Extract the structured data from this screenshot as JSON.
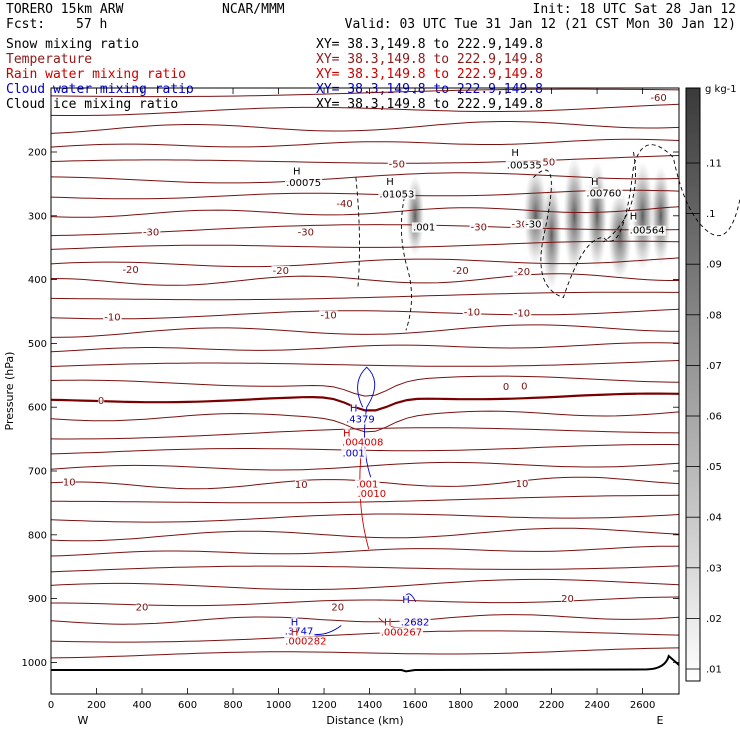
{
  "header": {
    "model": "TORERO  15km ARW",
    "org": "NCAR/MMM",
    "init": "Init: 18 UTC Sat 28 Jan 12",
    "fcst_label": "Fcst:",
    "fcst_value": "57 h",
    "valid": "Valid: 03 UTC Tue 31 Jan 12 (21 CST Mon 30 Jan 12)"
  },
  "fields": [
    {
      "name": "Snow mixing ratio",
      "xy": "XY=  38.3,149.8 to 222.9,149.8",
      "color": "#000000"
    },
    {
      "name": "Temperature",
      "xy": "XY=  38.3,149.8 to 222.9,149.8",
      "color": "#8b1a1a"
    },
    {
      "name": "Rain water mixing ratio",
      "xy": "XY=  38.3,149.8 to 222.9,149.8",
      "color": "#cc0000"
    },
    {
      "name": "Cloud water mixing ratio",
      "xy": "XY=  38.3,149.8 to 222.9,149.8",
      "color": "#0000cc"
    },
    {
      "name": "Cloud ice mixing ratio",
      "xy": "XY=  38.3,149.8 to 222.9,149.8",
      "color": "#000000"
    }
  ],
  "colors": {
    "temperature": "#7a1010",
    "temperature_zero": "#7a0000",
    "rain": "#cc0000",
    "cloud_water": "#0000cc",
    "snow": "#000000",
    "terrain": "#000000"
  },
  "chart_data": {
    "type": "contour cross-section",
    "xlabel": "Distance (km)",
    "ylabel": "Pressure (hPa)",
    "xlim": [
      0,
      2760
    ],
    "ylim": [
      1050,
      100
    ],
    "x_ticks": [
      0,
      200,
      400,
      600,
      800,
      1000,
      1200,
      1400,
      1600,
      1800,
      2000,
      2200,
      2400,
      2600
    ],
    "y_ticks": [
      200,
      300,
      400,
      500,
      600,
      700,
      800,
      900,
      1000
    ],
    "x_end_labels": {
      "left": "W",
      "right": "E"
    },
    "colorbar": {
      "unit": "g kg-1",
      "ticks": [
        ".01",
        ".02",
        ".03",
        ".04",
        ".05",
        ".06",
        ".07",
        ".08",
        ".09",
        ".1",
        ".11"
      ]
    },
    "temperature_labels": [
      {
        "text": "-60",
        "x": 2670,
        "p": 120
      },
      {
        "text": "-50",
        "x": 1520,
        "p": 224
      },
      {
        "text": "-50",
        "x": 2180,
        "p": 221
      },
      {
        "text": "-40",
        "x": 1290,
        "p": 286
      },
      {
        "text": "-30",
        "x": 440,
        "p": 331
      },
      {
        "text": "-30",
        "x": 1120,
        "p": 331
      },
      {
        "text": "-30",
        "x": 1880,
        "p": 323
      },
      {
        "text": "-30",
        "x": 2060,
        "p": 318
      },
      {
        "text": "-20",
        "x": 350,
        "p": 390
      },
      {
        "text": "-20",
        "x": 1010,
        "p": 391
      },
      {
        "text": "-20",
        "x": 1800,
        "p": 391
      },
      {
        "text": "-20",
        "x": 2070,
        "p": 393
      },
      {
        "text": "-10",
        "x": 270,
        "p": 464
      },
      {
        "text": "-10",
        "x": 1220,
        "p": 461
      },
      {
        "text": "-10",
        "x": 1850,
        "p": 456
      },
      {
        "text": "-10",
        "x": 2070,
        "p": 458
      },
      {
        "text": "0",
        "x": 2000,
        "p": 573
      },
      {
        "text": "0",
        "x": 2080,
        "p": 572
      },
      {
        "text": "0",
        "x": 220,
        "p": 595
      },
      {
        "text": "10",
        "x": 80,
        "p": 723
      },
      {
        "text": "10",
        "x": 1100,
        "p": 727
      },
      {
        "text": "10",
        "x": 2070,
        "p": 725
      },
      {
        "text": "20",
        "x": 400,
        "p": 919
      },
      {
        "text": "20",
        "x": 1260,
        "p": 919
      },
      {
        "text": "20",
        "x": 2270,
        "p": 905
      }
    ],
    "snow_labels": [
      {
        "text": "H",
        "x": 1080,
        "p": 235
      },
      {
        "text": ".00075",
        "x": 1110,
        "p": 253
      },
      {
        "text": "H",
        "x": 1490,
        "p": 252
      },
      {
        "text": ".01053",
        "x": 1520,
        "p": 271
      },
      {
        "text": "H",
        "x": 2040,
        "p": 206
      },
      {
        "text": ".00535",
        "x": 2080,
        "p": 226
      },
      {
        "text": "H",
        "x": 2390,
        "p": 252
      },
      {
        "text": ".00760",
        "x": 2430,
        "p": 270
      },
      {
        "text": "H",
        "x": 2560,
        "p": 306
      },
      {
        "text": ".00564",
        "x": 2620,
        "p": 328
      },
      {
        "text": ".001",
        "x": 1640,
        "p": 323
      },
      {
        "text": "-30",
        "x": 2120,
        "p": 318
      }
    ],
    "cloud_water_labels": [
      {
        "text": "H",
        "x": 1330,
        "p": 607
      },
      {
        "text": ".4379",
        "x": 1360,
        "p": 624
      },
      {
        "text": ".001",
        "x": 1330,
        "p": 677
      },
      {
        "text": "H",
        "x": 1560,
        "p": 907
      },
      {
        "text": ".2682",
        "x": 1600,
        "p": 942
      },
      {
        "text": "H",
        "x": 1070,
        "p": 942
      },
      {
        "text": ".3747",
        "x": 1090,
        "p": 956
      }
    ],
    "rain_labels": [
      {
        "text": "H",
        "x": 1300,
        "p": 646
      },
      {
        "text": ".004008",
        "x": 1370,
        "p": 660
      },
      {
        "text": ".001",
        "x": 1390,
        "p": 726
      },
      {
        "text": ".0010",
        "x": 1410,
        "p": 741
      },
      {
        "text": "H",
        "x": 1480,
        "p": 942
      },
      {
        "text": ".000267",
        "x": 1540,
        "p": 958
      },
      {
        "text": "H",
        "x": 1070,
        "p": 958
      },
      {
        "text": ".000282",
        "x": 1120,
        "p": 972
      }
    ]
  }
}
